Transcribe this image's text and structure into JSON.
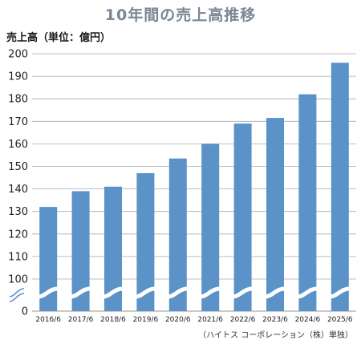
{
  "chart_data": {
    "type": "bar",
    "title": "10年間の売上高推移",
    "ylabel": "売上高（単位：億円）",
    "categories": [
      "2016/6",
      "2017/6",
      "2018/6",
      "2019/6",
      "2020/6",
      "2021/6",
      "2022/6",
      "2023/6",
      "2024/6",
      "2025/6"
    ],
    "values": [
      132,
      139,
      141,
      147,
      153.5,
      160,
      169,
      171.5,
      182,
      196
    ],
    "yticks": [
      0,
      100,
      110,
      120,
      130,
      140,
      150,
      160,
      170,
      180,
      190,
      200
    ],
    "ylim": [
      100,
      200
    ],
    "axis_break": true,
    "grid": true,
    "colors": {
      "bar": "#5b93c9",
      "grid": "#aaaaaa",
      "title": "#7a8794"
    }
  },
  "source_note": "（ハイトス コーポレーション（株）単独）"
}
